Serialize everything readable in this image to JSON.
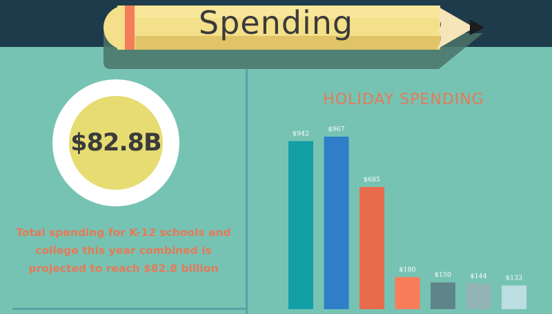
{
  "header": {
    "title": "Spending"
  },
  "stat": {
    "value": "$82.8B",
    "description": "Total spending for K-12 schools and college this year combined is projected to reach $82.8 billion"
  },
  "chart_data": {
    "type": "bar",
    "title": "HOLIDAY SPENDING",
    "categories": [
      "",
      "",
      "",
      "",
      "",
      "",
      ""
    ],
    "values": [
      942,
      967,
      685,
      180,
      150,
      144,
      133
    ],
    "value_labels": [
      "$942",
      "$967",
      "$685",
      "$180",
      "$150",
      "$144",
      "$133"
    ],
    "colors": [
      "#12a0a6",
      "#2e7ec8",
      "#e86b4c",
      "#fa7d5a",
      "#5e8589",
      "#93b3b6",
      "#bcdde1"
    ],
    "xlabel": "",
    "ylabel": "",
    "ylim": [
      0,
      1000
    ],
    "grid": false,
    "legend": "none"
  },
  "colors": {
    "background": "#76c3b3",
    "header_bar": "#1e3b4b",
    "accent": "#e57a58",
    "circle_fill": "#e6dc72"
  },
  "icons": {
    "header": "pencil-icon"
  }
}
